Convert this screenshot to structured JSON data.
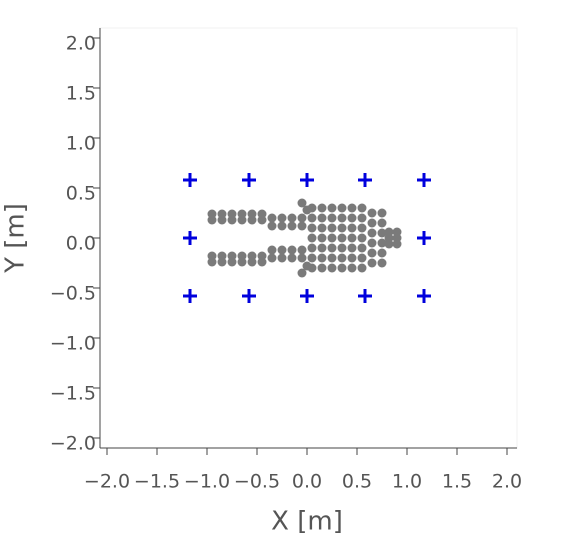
{
  "chart_data": {
    "type": "scatter",
    "x_label": "X [m]",
    "y_label": "Y [m]",
    "xlim": [
      -2.07,
      2.1
    ],
    "ylim": [
      -2.1,
      2.1
    ],
    "xticks": [
      {
        "value": -2.0,
        "label": "−2.0"
      },
      {
        "value": -1.5,
        "label": "−1.5"
      },
      {
        "value": -1.0,
        "label": "−1.0"
      },
      {
        "value": -0.5,
        "label": "−0.5"
      },
      {
        "value": 0,
        "label": "0.0"
      },
      {
        "value": 0.5,
        "label": "0.5"
      },
      {
        "value": 1.0,
        "label": "1.0"
      },
      {
        "value": 1.5,
        "label": "1.5"
      },
      {
        "value": 2.0,
        "label": "2.0"
      }
    ],
    "yticks": [
      {
        "value": -2.0,
        "label": "−2.0"
      },
      {
        "value": -1.5,
        "label": "−1.5"
      },
      {
        "value": -1.0,
        "label": "−1.0"
      },
      {
        "value": -0.5,
        "label": "−0.5"
      },
      {
        "value": 0,
        "label": "0.0"
      },
      {
        "value": 0.5,
        "label": "0.5"
      },
      {
        "value": 1.0,
        "label": "1.0"
      },
      {
        "value": 1.5,
        "label": "1.5"
      },
      {
        "value": 2.0,
        "label": "2.0"
      }
    ],
    "series": [
      {
        "color": "#7a7a7a",
        "marker": "circle",
        "x": [
          -0.95,
          -0.95,
          -0.95,
          -0.95,
          -0.85,
          -0.85,
          -0.85,
          -0.85,
          -0.75,
          -0.75,
          -0.75,
          -0.75,
          -0.65,
          -0.65,
          -0.65,
          -0.65,
          -0.55,
          -0.55,
          -0.55,
          -0.55,
          -0.45,
          -0.45,
          -0.45,
          -0.45,
          -0.35,
          -0.35,
          -0.35,
          -0.35,
          -0.25,
          -0.25,
          -0.25,
          -0.25,
          -0.15,
          -0.15,
          -0.15,
          -0.15,
          -0.05,
          -0.05,
          -0.05,
          -0.05,
          0.05,
          0.05,
          0.05,
          0.05,
          0.05,
          0.05,
          0.05,
          0.15,
          0.15,
          0.15,
          0.15,
          0.15,
          0.15,
          0.15,
          0.25,
          0.25,
          0.25,
          0.25,
          0.25,
          0.25,
          0.25,
          0.35,
          0.35,
          0.35,
          0.35,
          0.35,
          0.35,
          0.35,
          0.45,
          0.45,
          0.45,
          0.45,
          0.45,
          0.45,
          0.45,
          0.55,
          0.55,
          0.55,
          0.55,
          0.55,
          0.55,
          0.55,
          0.65,
          0.65,
          0.65,
          0.65,
          0.65,
          0.65,
          0.75,
          0.75,
          0.75,
          0.75,
          0.75,
          0.75,
          0.82,
          0.82,
          0.82,
          0.9,
          0.9,
          0.9,
          -0.05,
          -0.05,
          0,
          0
        ],
        "y": [
          0.24,
          0.18,
          -0.18,
          -0.24,
          0.24,
          0.18,
          -0.18,
          -0.24,
          0.24,
          0.18,
          -0.18,
          -0.24,
          0.24,
          0.18,
          -0.18,
          -0.24,
          0.24,
          0.18,
          -0.18,
          -0.24,
          0.24,
          0.18,
          -0.18,
          -0.24,
          0.2,
          0.12,
          -0.12,
          -0.2,
          0.2,
          0.12,
          -0.12,
          -0.2,
          0.2,
          0.12,
          -0.12,
          -0.2,
          0.2,
          0.12,
          -0.12,
          -0.2,
          -0.3,
          -0.2,
          -0.1,
          0,
          0.1,
          0.2,
          0.3,
          -0.3,
          -0.2,
          -0.1,
          0,
          0.1,
          0.2,
          0.3,
          -0.3,
          -0.2,
          -0.1,
          0,
          0.1,
          0.2,
          0.3,
          -0.3,
          -0.2,
          -0.1,
          0,
          0.1,
          0.2,
          0.3,
          -0.3,
          -0.2,
          -0.1,
          0,
          0.1,
          0.2,
          0.3,
          -0.3,
          -0.2,
          -0.1,
          0,
          0.1,
          0.2,
          0.3,
          0.25,
          0.15,
          0.05,
          -0.05,
          -0.15,
          -0.25,
          0.25,
          0.15,
          0.05,
          -0.05,
          -0.15,
          -0.25,
          0.06,
          0,
          -0.06,
          0.06,
          0,
          -0.06,
          0.35,
          -0.35,
          0.28,
          -0.28
        ]
      },
      {
        "color": "#0000dd",
        "marker": "plus",
        "x": [
          -1.17,
          -0.58,
          0,
          0.58,
          1.17,
          -1.17,
          1.17,
          -1.17,
          -0.58,
          0,
          0.58,
          1.17
        ],
        "y": [
          0.58,
          0.58,
          0.58,
          0.58,
          0.58,
          0,
          0,
          -0.58,
          -0.58,
          -0.58,
          -0.58,
          -0.58
        ]
      }
    ]
  }
}
